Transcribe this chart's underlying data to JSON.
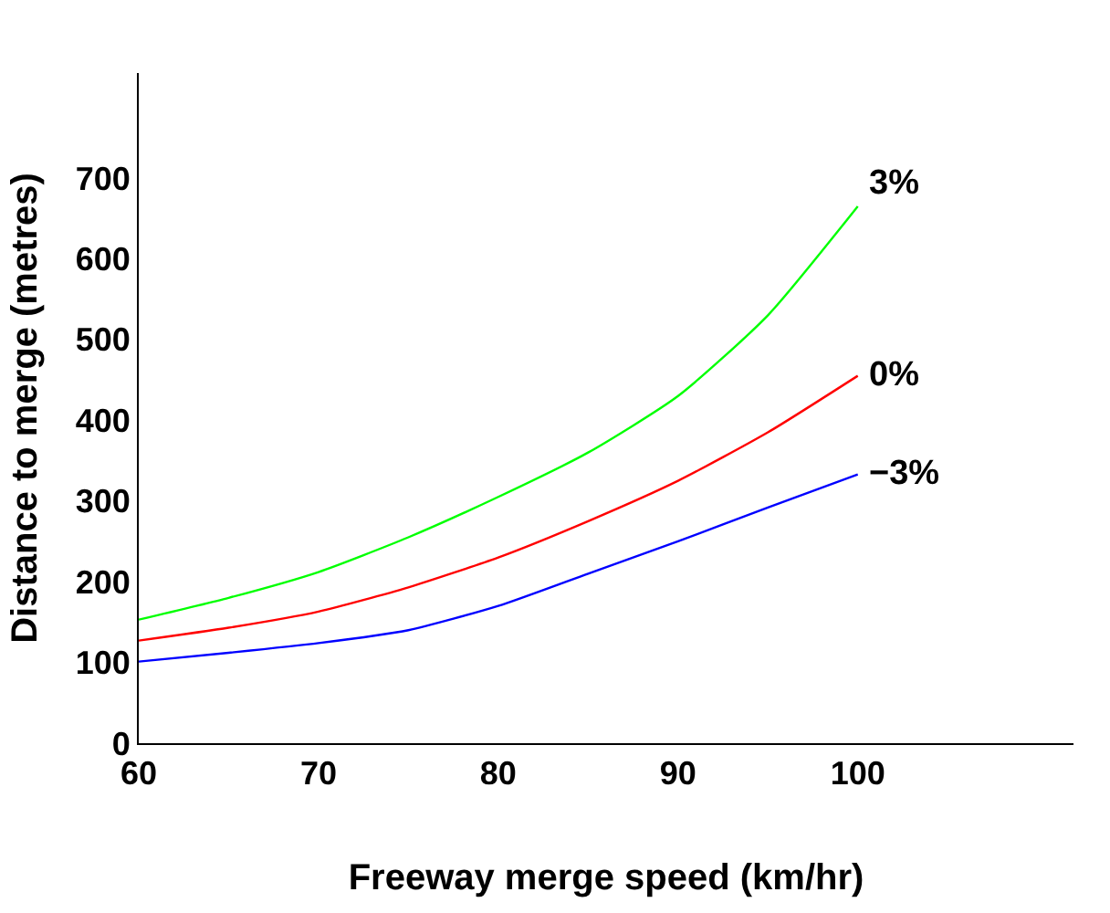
{
  "chart_data": {
    "type": "line",
    "xlabel": "Freeway merge speed (km/hr)",
    "ylabel": "Distance to merge (metres)",
    "x": [
      60,
      65,
      70,
      75,
      80,
      85,
      90,
      95,
      100
    ],
    "series": [
      {
        "name": "3%",
        "color": "#00ff00",
        "values": [
          153,
          180,
          212,
          255,
          305,
          360,
          430,
          530,
          665
        ]
      },
      {
        "name": "0%",
        "color": "#ff0000",
        "values": [
          127,
          143,
          163,
          193,
          230,
          275,
          325,
          385,
          455
        ]
      },
      {
        "name": "−3%",
        "color": "#0000ff",
        "values": [
          101,
          112,
          124,
          140,
          170,
          210,
          250,
          292,
          333
        ]
      }
    ],
    "xlim": [
      60,
      112
    ],
    "ylim": [
      0,
      830
    ],
    "xticks": [
      60,
      70,
      80,
      90,
      100
    ],
    "yticks": [
      0,
      100,
      200,
      300,
      400,
      500,
      600,
      700
    ],
    "legend": false,
    "marker": "none",
    "line_style": "solid"
  }
}
